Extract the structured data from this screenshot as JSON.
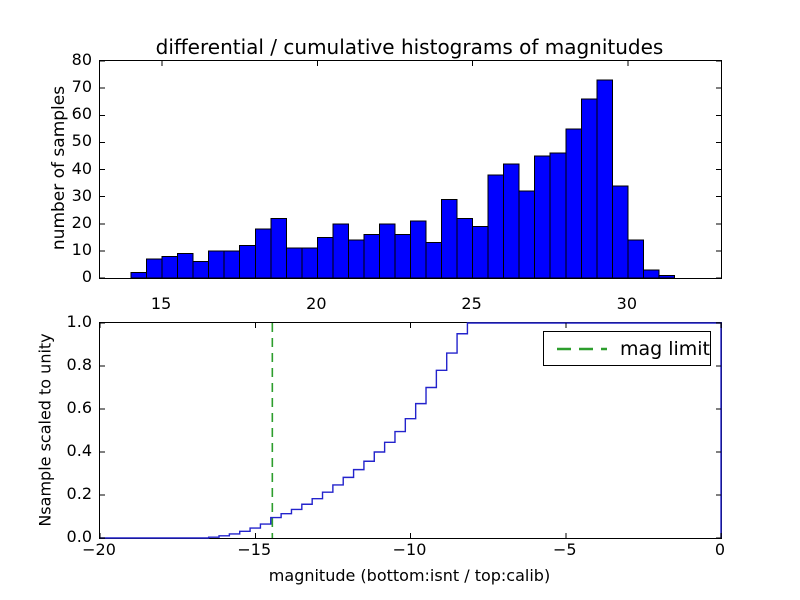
{
  "figure": {
    "title": "differential / cumulative histograms of magnitudes",
    "background": "#ffffff",
    "axis_color": "#000000"
  },
  "chart_data": [
    {
      "type": "bar",
      "name": "differential-histogram-of-calibrated-magnitudes",
      "title": "differential / cumulative histograms of magnitudes",
      "ylabel": "number of samples",
      "xlim": [
        13,
        33
      ],
      "ylim": [
        0,
        80
      ],
      "xtick_values": [
        15,
        20,
        25,
        30
      ],
      "xtick_labels": [
        "15",
        "20",
        "25",
        "30"
      ],
      "ytick_values": [
        0,
        10,
        20,
        30,
        40,
        50,
        60,
        70,
        80
      ],
      "ytick_labels": [
        "0",
        "10",
        "20",
        "30",
        "40",
        "50",
        "60",
        "70",
        "80"
      ],
      "bin_start": 14.0,
      "bin_width": 0.5,
      "counts": [
        2,
        7,
        8,
        9,
        6,
        10,
        10,
        12,
        18,
        22,
        11,
        11,
        15,
        20,
        14,
        16,
        20,
        16,
        21,
        13,
        29,
        22,
        19,
        38,
        42,
        32,
        45,
        46,
        55,
        66,
        73,
        34,
        14,
        3,
        1
      ],
      "bar_fill": "#0000ff",
      "bar_edge": "#000000",
      "grid": false,
      "legend": null
    },
    {
      "type": "line",
      "subtype": "cumulative-step",
      "name": "cumulative-histogram-of-instrumental-magnitudes",
      "xlabel": "magnitude (bottom:isnt / top:calib)",
      "ylabel": "Nsample scaled to unity",
      "xlim": [
        -20,
        0
      ],
      "ylim": [
        0,
        1
      ],
      "xtick_values": [
        -20,
        -15,
        -10,
        -5,
        0
      ],
      "xtick_labels": [
        "−20",
        "−15",
        "−10",
        "−5",
        "0"
      ],
      "ytick_values": [
        0,
        0.2,
        0.4,
        0.6,
        0.8,
        1.0
      ],
      "ytick_labels": [
        "0.0",
        "0.2",
        "0.4",
        "0.6",
        "0.8",
        "1.0"
      ],
      "step_first_rise_x": -16.5,
      "step_width": 0.33333,
      "cumulative_values": [
        0.004,
        0.01,
        0.019,
        0.031,
        0.046,
        0.065,
        0.095,
        0.113,
        0.133,
        0.157,
        0.183,
        0.213,
        0.247,
        0.282,
        0.318,
        0.357,
        0.4,
        0.445,
        0.495,
        0.555,
        0.625,
        0.7,
        0.78,
        0.86,
        0.95,
        1.0
      ],
      "line_color": "#2323cc",
      "vline": {
        "x": -14.45,
        "color": "#2d9e2d",
        "style": "dashed",
        "label": "mag limit"
      },
      "legend": {
        "position": "upper right",
        "label": "mag limit",
        "sample_color": "#2d9e2d",
        "sample_style": "dashed"
      },
      "grid": false
    }
  ]
}
